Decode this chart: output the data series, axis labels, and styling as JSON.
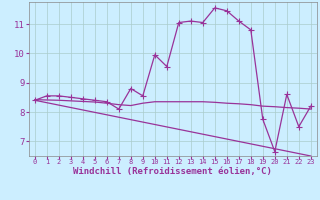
{
  "xlabel": "Windchill (Refroidissement éolien,°C)",
  "background_color": "#cceeff",
  "line_color": "#993399",
  "grid_color": "#aacccc",
  "xlim": [
    -0.5,
    23.5
  ],
  "ylim": [
    6.5,
    11.75
  ],
  "xticks": [
    0,
    1,
    2,
    3,
    4,
    5,
    6,
    7,
    8,
    9,
    10,
    11,
    12,
    13,
    14,
    15,
    16,
    17,
    18,
    19,
    20,
    21,
    22,
    23
  ],
  "yticks": [
    7,
    8,
    9,
    10,
    11
  ],
  "curve1_x": [
    0,
    1,
    2,
    3,
    4,
    5,
    6,
    7,
    8,
    9,
    10,
    11,
    12,
    13,
    14,
    15,
    16,
    17,
    18,
    19,
    20,
    21,
    22,
    23
  ],
  "curve1_y": [
    8.4,
    8.55,
    8.55,
    8.5,
    8.45,
    8.4,
    8.35,
    8.1,
    8.8,
    8.55,
    9.95,
    9.55,
    11.05,
    11.1,
    11.05,
    11.55,
    11.45,
    11.1,
    10.8,
    7.75,
    6.65,
    8.6,
    7.5,
    8.2
  ],
  "curve2_x": [
    0,
    1,
    2,
    3,
    4,
    5,
    6,
    7,
    8,
    9,
    10,
    11,
    12,
    13,
    14,
    15,
    16,
    17,
    18,
    19,
    20,
    21,
    22,
    23
  ],
  "curve2_y": [
    8.42,
    8.41,
    8.4,
    8.38,
    8.36,
    8.34,
    8.3,
    8.25,
    8.22,
    8.3,
    8.35,
    8.35,
    8.35,
    8.35,
    8.35,
    8.33,
    8.3,
    8.28,
    8.25,
    8.2,
    8.18,
    8.15,
    8.13,
    8.1
  ],
  "curve3_x": [
    0,
    23
  ],
  "curve3_y": [
    8.4,
    6.5
  ],
  "markersize": 2.5,
  "linewidth": 0.9,
  "xlabel_fontsize": 6.5,
  "tick_fontsize_x": 5.0,
  "tick_fontsize_y": 6.5
}
